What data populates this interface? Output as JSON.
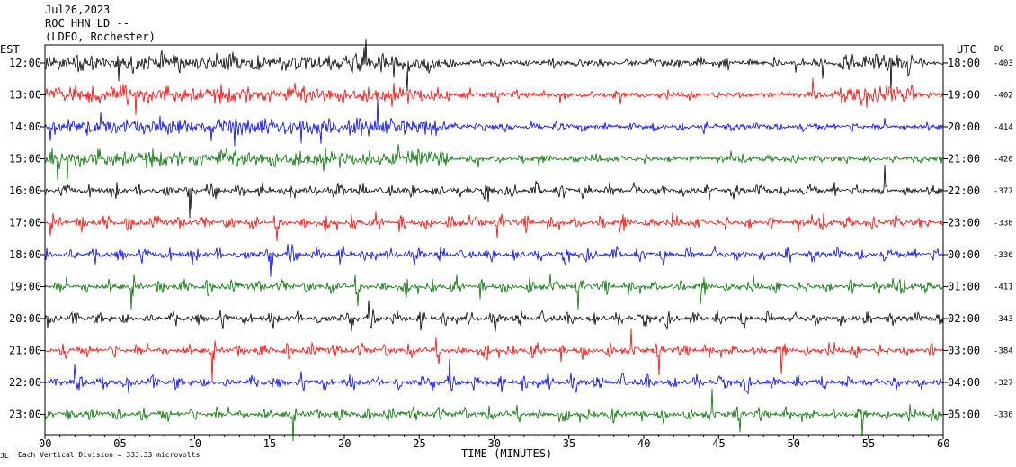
{
  "header": {
    "date": "Jul26,2023",
    "station": "ROC HHN LD --",
    "network": "(LDEO, Rochester)"
  },
  "labels": {
    "left_zone": "EST",
    "right_zone": "UTC",
    "dc_header": "DC",
    "xlabel": "TIME (MINUTES)",
    "scale_note": "Each Vertical Division =  333.33 microvolts"
  },
  "colors": {
    "cycle": [
      "#000000",
      "#ff0000",
      "#0000ff",
      "#007000"
    ],
    "background": "#ffffff",
    "frame": "#000000"
  },
  "chart_data": {
    "type": "line",
    "title": "",
    "xlabel": "TIME (MINUTES)",
    "xlim": [
      0,
      60
    ],
    "x_ticks": [
      "00",
      "05",
      "10",
      "15",
      "20",
      "25",
      "30",
      "35",
      "40",
      "45",
      "50",
      "55",
      "60"
    ],
    "rows": [
      {
        "est": "12:00",
        "utc": "18:00",
        "dc": "-403",
        "color": "#000000"
      },
      {
        "est": "13:00",
        "utc": "19:00",
        "dc": "-402",
        "color": "#ff0000"
      },
      {
        "est": "14:00",
        "utc": "20:00",
        "dc": "-414",
        "color": "#0000ff"
      },
      {
        "est": "15:00",
        "utc": "21:00",
        "dc": "-420",
        "color": "#007000"
      },
      {
        "est": "16:00",
        "utc": "22:00",
        "dc": "-377",
        "color": "#000000"
      },
      {
        "est": "17:00",
        "utc": "23:00",
        "dc": "-338",
        "color": "#ff0000"
      },
      {
        "est": "18:00",
        "utc": "00:00",
        "dc": "-336",
        "color": "#0000ff"
      },
      {
        "est": "19:00",
        "utc": "01:00",
        "dc": "-411",
        "color": "#007000"
      },
      {
        "est": "20:00",
        "utc": "02:00",
        "dc": "-343",
        "color": "#000000"
      },
      {
        "est": "21:00",
        "utc": "03:00",
        "dc": "-384",
        "color": "#ff0000"
      },
      {
        "est": "22:00",
        "utc": "04:00",
        "dc": "-327",
        "color": "#0000ff"
      },
      {
        "est": "23:00",
        "utc": "05:00",
        "dc": "-336",
        "color": "#007000"
      }
    ],
    "grid": false
  }
}
